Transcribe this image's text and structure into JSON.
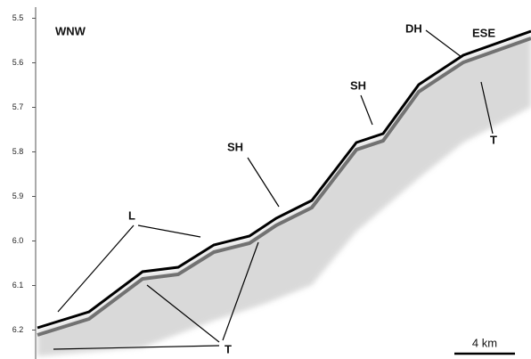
{
  "chart_data": {
    "type": "profile",
    "ylim": [
      5.475,
      6.265
    ],
    "yticks": [
      5.5,
      5.6,
      5.7,
      5.8,
      5.9,
      {
        "value": 6.0,
        "label": "6.0"
      },
      6.1,
      6.2
    ],
    "annotations": {
      "west": "WNW",
      "east": "ESE",
      "dh": "DH",
      "sh_upper": "SH",
      "sh_lower": "SH",
      "l": "L",
      "t_right": "T",
      "t_lower": "T",
      "scale": "4 km"
    }
  }
}
